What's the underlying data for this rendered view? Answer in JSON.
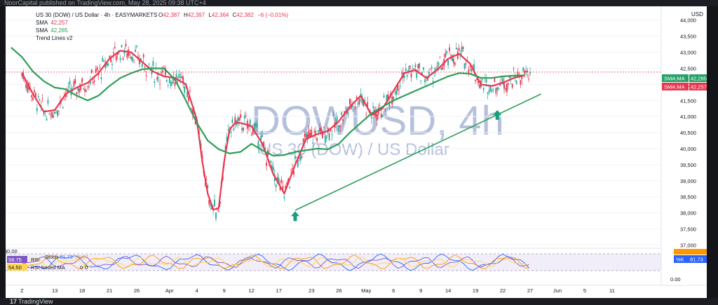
{
  "header_text": "NoorCapital published on TradingView.com, May 28, 2025 09:38 UTC+4",
  "legend": {
    "symbol_line": "US 30 (DOW) / US Dollar · 4h · EASYMARKETS",
    "ohlc": {
      "o_label": "O",
      "o": "42,387",
      "h_label": "H",
      "h": "42,397",
      "l_label": "L",
      "l": "42,364",
      "c_label": "C",
      "c": "42,382",
      "chg": "−6 (−0.01%)"
    },
    "sma1_label": "SMA",
    "sma1_value": "42,257",
    "sma2_label": "SMA",
    "sma2_value": "42,285",
    "trend_label": "Trend Lines v2"
  },
  "currency": "USD",
  "watermark": {
    "main": "DOWUSD, 4h",
    "sub": "US 30 (DOW) / US Dollar"
  },
  "price_badges": [
    {
      "label": "SMA:MA",
      "value": "42,285",
      "color": "#26a269"
    },
    {
      "label": "SMA:MA",
      "value": "42,257",
      "color": "#e8364f"
    }
  ],
  "oscillator": {
    "stoch_label": "Stoch",
    "stoch_value": "81.73",
    "stoch_value2": "88.67",
    "rsi_label": "RSI",
    "rsi_value": "58.75",
    "rsi_ma_label": "RSI-based MA",
    "rsi_ma_value": "54.50",
    "zero_a": "0",
    "zero_b": "0",
    "badge_k": "%K",
    "badge_value": "81.73",
    "axis_labels": [
      "80.00",
      "0.00"
    ]
  },
  "bottom_brand": {
    "logo": "17",
    "text": "TradingView"
  },
  "chart_data": {
    "type": "line",
    "title": "DOWUSD, 4h",
    "subtitle": "US 30 (DOW) / US Dollar",
    "ylim": [
      36900,
      44300
    ],
    "y_ticks": [
      37000,
      37500,
      38000,
      38500,
      39000,
      39500,
      40000,
      40500,
      41000,
      41500,
      42000,
      42500,
      43000,
      43500,
      44000
    ],
    "y_tick_labels": [
      "37,000",
      "37,500",
      "38,000",
      "38,500",
      "39,000",
      "39,500",
      "40,000",
      "40,500",
      "41,000",
      "41,500",
      "42,000",
      "42,500",
      "43,000",
      "43,500",
      "44,000"
    ],
    "x_ticks": [
      "Z",
      "13",
      "18",
      "21",
      "26",
      "Apr",
      "4",
      "9",
      "12",
      "17",
      "23",
      "26",
      "May",
      "6",
      "9",
      "14",
      "19",
      "22",
      "27",
      "Jun",
      "5",
      "11"
    ],
    "x_tick_pos": [
      0,
      6,
      11,
      16,
      21,
      27,
      32,
      37,
      42,
      47,
      53,
      58,
      63,
      68,
      73,
      78,
      83,
      88,
      93,
      98,
      103,
      108
    ],
    "x_range": [
      -3,
      117
    ],
    "series": [
      {
        "name": "SMA 42,257",
        "color": "#e8364f",
        "x": [
          0,
          2,
          4,
          6,
          8,
          10,
          12,
          14,
          16,
          18,
          20,
          22,
          24,
          26,
          28,
          30,
          32,
          33,
          34,
          35,
          36,
          37,
          38,
          39,
          40,
          41,
          42,
          44,
          46,
          48,
          50,
          52,
          54,
          56,
          58,
          60,
          62,
          64,
          66,
          68,
          70,
          72,
          74,
          76,
          78,
          80,
          82,
          84,
          86,
          88,
          90,
          92
        ],
        "y": [
          42350,
          41700,
          41150,
          41200,
          41700,
          41900,
          42050,
          42350,
          42800,
          43050,
          43000,
          42700,
          42400,
          42250,
          42200,
          42000,
          40900,
          39600,
          38600,
          38100,
          38150,
          39600,
          40600,
          40800,
          40800,
          40750,
          40700,
          40150,
          39200,
          38600,
          39500,
          40300,
          40450,
          40550,
          40850,
          41300,
          41650,
          41050,
          41250,
          41800,
          42350,
          42450,
          42200,
          42450,
          42800,
          42950,
          42650,
          42000,
          41950,
          42050,
          42200,
          42280
        ]
      },
      {
        "name": "SMA 42,285",
        "color": "#2e9e57",
        "x": [
          -2,
          0,
          2,
          4,
          6,
          8,
          10,
          12,
          14,
          16,
          18,
          20,
          22,
          24,
          26,
          28,
          30,
          32,
          34,
          36,
          38,
          40,
          42,
          44,
          46,
          48,
          50,
          52,
          54,
          56,
          58,
          60,
          62,
          64,
          66,
          68,
          70,
          72,
          74,
          76,
          78,
          80,
          82,
          84,
          86,
          88,
          90,
          92
        ],
        "y": [
          43150,
          42850,
          42400,
          42100,
          41900,
          41850,
          41650,
          41500,
          41650,
          41950,
          42200,
          42350,
          42470,
          42500,
          42500,
          42150,
          41500,
          40800,
          40250,
          39980,
          39850,
          39900,
          40150,
          39950,
          39780,
          39800,
          39900,
          39950,
          40000,
          39980,
          40150,
          40500,
          40800,
          41100,
          41300,
          41500,
          41650,
          41800,
          41950,
          42100,
          42250,
          42350,
          42330,
          42200,
          42200,
          42250,
          42270,
          42285
        ]
      },
      {
        "name": "Trend line",
        "color": "#2e9e57",
        "x": [
          50,
          95
        ],
        "y": [
          38080,
          41700
        ]
      }
    ],
    "markers": [
      {
        "type": "up-arrow",
        "x": 50,
        "y": 37900
      },
      {
        "type": "up-arrow",
        "x": 87,
        "y": 41050
      }
    ],
    "current_price": 42382
  }
}
